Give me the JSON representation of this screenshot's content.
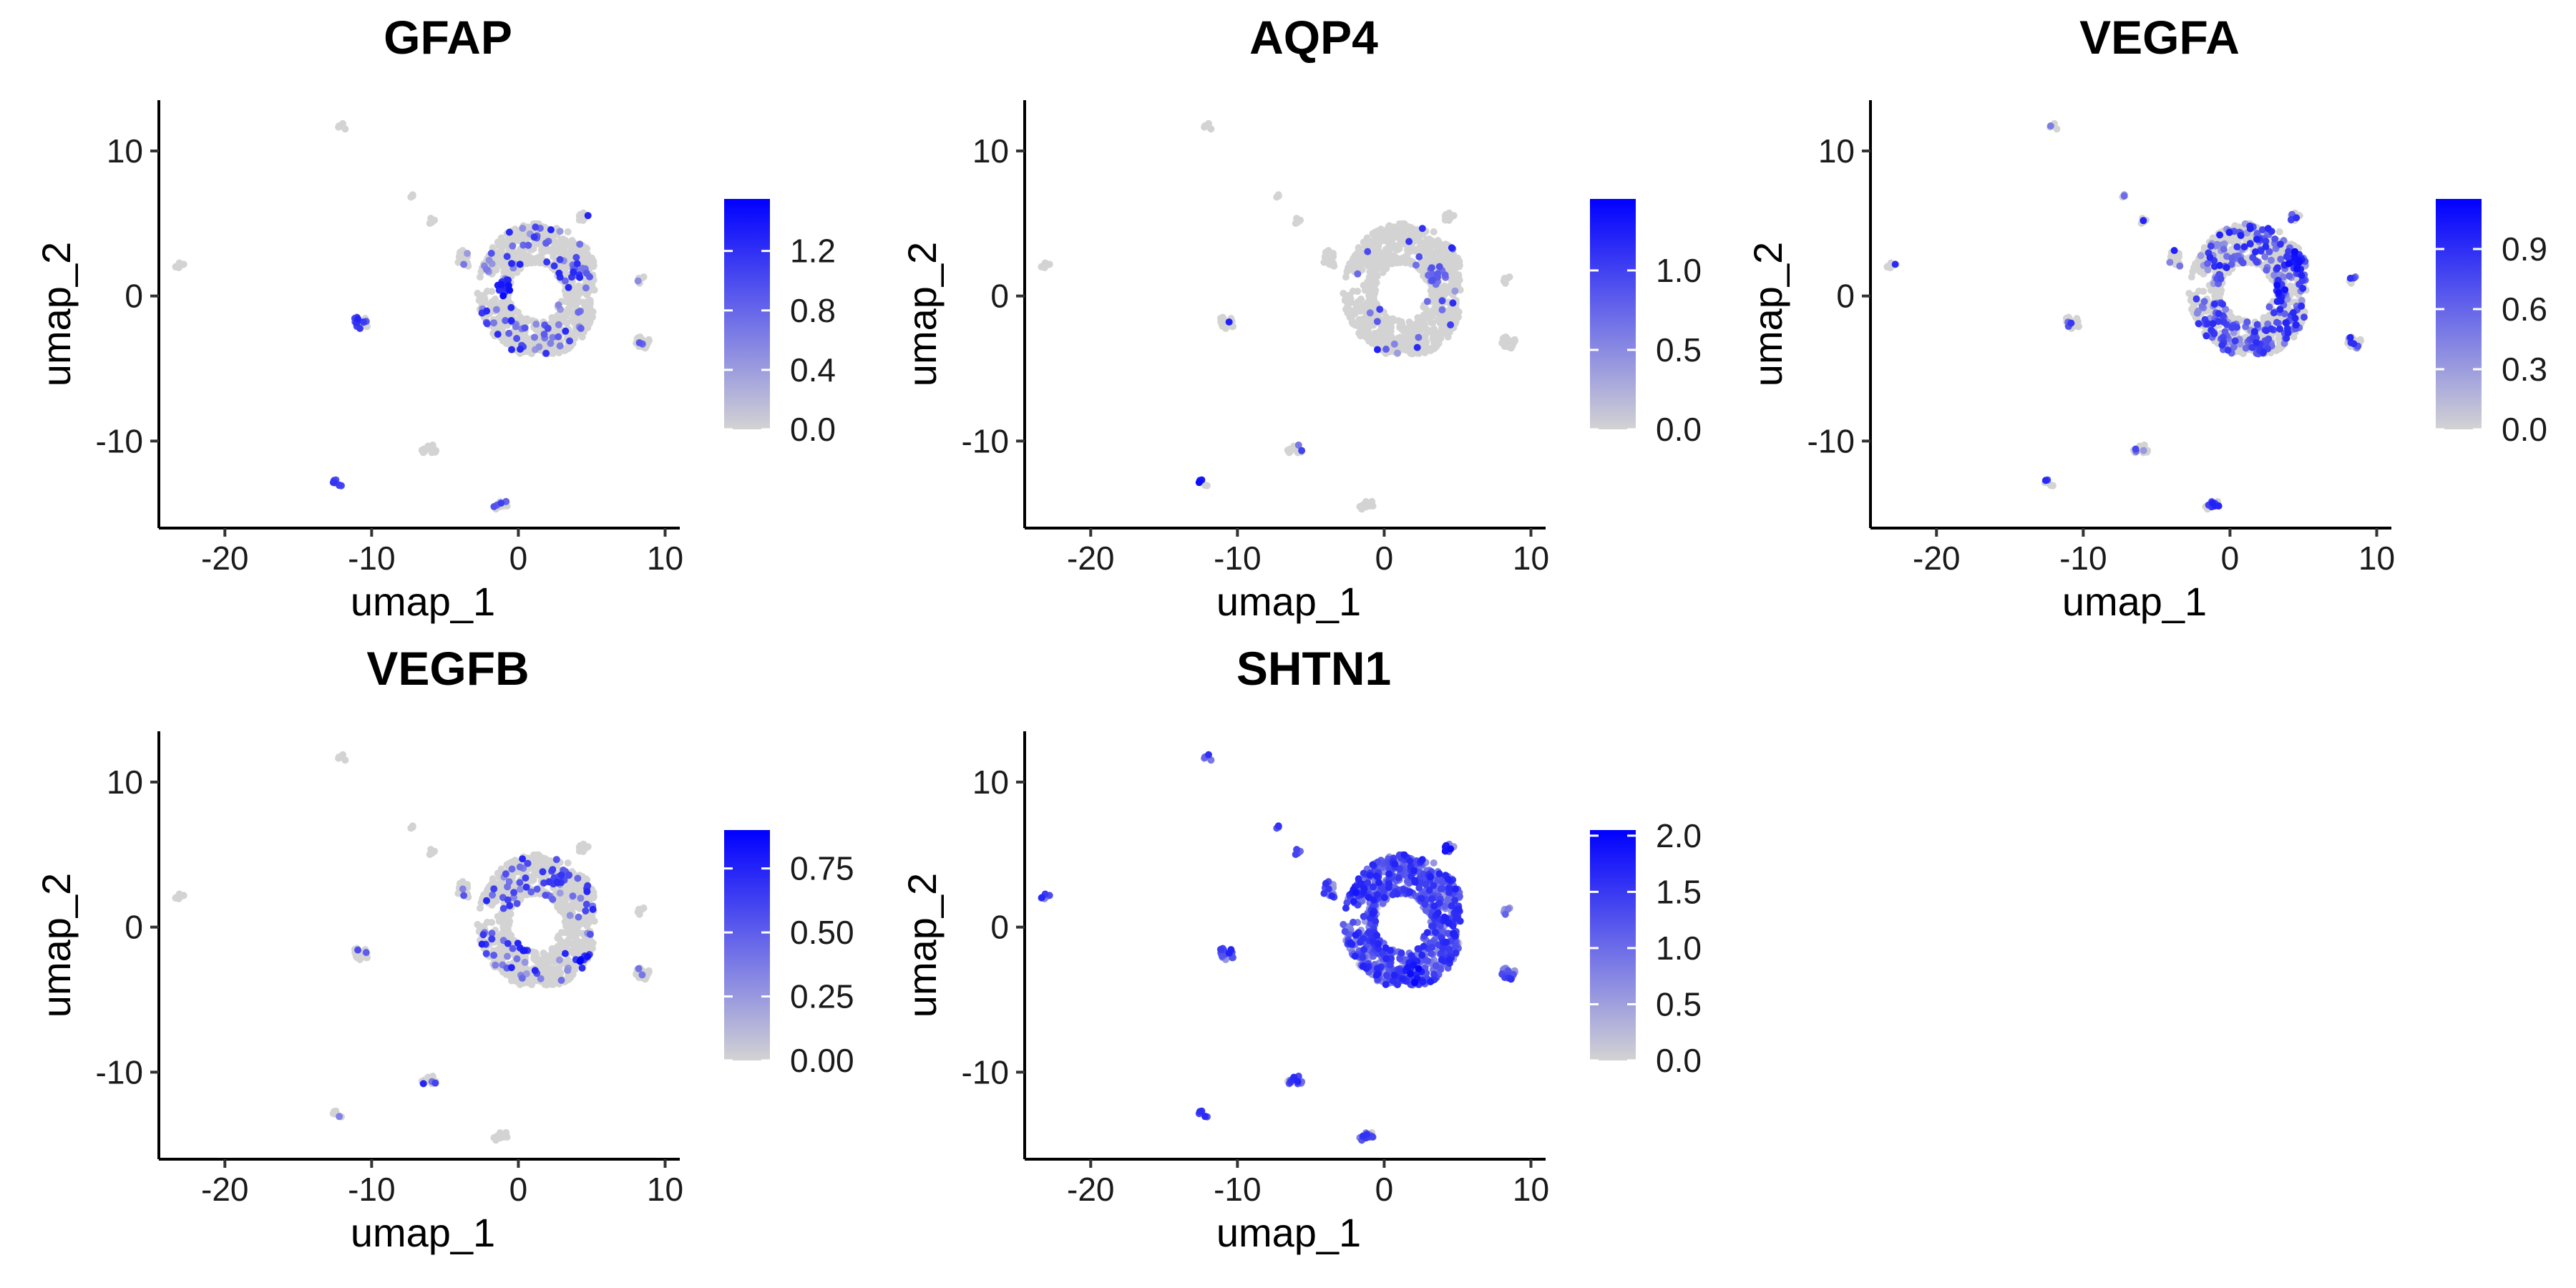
{
  "colors": {
    "low": "#d3d3d3",
    "high": "#0000ff",
    "background": "#ffffff"
  },
  "chart_data": [
    {
      "type": "scatter",
      "title": "GFAP",
      "xlabel": "umap_1",
      "ylabel": "umap_2",
      "xlim": [
        -24.5,
        11
      ],
      "ylim": [
        -16,
        13.5
      ],
      "xticks": [
        -20,
        -10,
        0,
        10
      ],
      "yticks": [
        -10,
        0,
        10
      ],
      "legend": {
        "position": "right",
        "min": 0,
        "max": 1.55,
        "ticks": [
          0.0,
          0.4,
          0.8,
          1.2
        ],
        "tick_labels": [
          "0.0",
          "0.4",
          "0.8",
          "1.2"
        ]
      },
      "expression_fraction": 0.09,
      "hotspots": [
        {
          "x": -1.0,
          "y": 0.5,
          "value": 1.5
        },
        {
          "x": 1.5,
          "y": -0.8,
          "value": 1.0
        },
        {
          "x": 4.0,
          "y": 1.6,
          "value": 0.9
        },
        {
          "x": -11.0,
          "y": -2.0,
          "value": 1.2
        },
        {
          "x": -12.3,
          "y": -12.8,
          "value": 1.2
        }
      ]
    },
    {
      "type": "scatter",
      "title": "AQP4",
      "xlabel": "umap_1",
      "ylabel": "umap_2",
      "xlim": [
        -24.5,
        11
      ],
      "ylim": [
        -16,
        13.5
      ],
      "xticks": [
        -20,
        -10,
        0,
        10
      ],
      "yticks": [
        -10,
        0,
        10
      ],
      "legend": {
        "position": "right",
        "min": 0,
        "max": 1.45,
        "ticks": [
          0.0,
          0.5,
          1.0
        ],
        "tick_labels": [
          "0.0",
          "0.5",
          "1.0"
        ]
      },
      "expression_fraction": 0.03,
      "hotspots": [
        {
          "x": -12.2,
          "y": -12.8,
          "value": 1.4
        },
        {
          "x": 3.6,
          "y": 1.5,
          "value": 0.9
        }
      ]
    },
    {
      "type": "scatter",
      "title": "VEGFA",
      "xlabel": "umap_1",
      "ylabel": "umap_2",
      "xlim": [
        -24.5,
        11
      ],
      "ylim": [
        -16,
        13.5
      ],
      "xticks": [
        -20,
        -10,
        0,
        10
      ],
      "yticks": [
        -10,
        0,
        10
      ],
      "legend": {
        "position": "right",
        "min": 0,
        "max": 1.15,
        "ticks": [
          0.0,
          0.3,
          0.6,
          0.9
        ],
        "tick_labels": [
          "0.0",
          "0.3",
          "0.6",
          "0.9"
        ]
      },
      "expression_fraction": 0.28,
      "hotspots": [
        {
          "x": 3.2,
          "y": 0.2,
          "value": 1.1
        },
        {
          "x": 4.3,
          "y": 2.5,
          "value": 1.1
        },
        {
          "x": -1.3,
          "y": -14.3,
          "value": 1.0
        },
        {
          "x": 2.0,
          "y": -3.3,
          "value": 0.9
        }
      ]
    },
    {
      "type": "scatter",
      "title": "VEGFB",
      "xlabel": "umap_1",
      "ylabel": "umap_2",
      "xlim": [
        -24.5,
        11
      ],
      "ylim": [
        -16,
        13.5
      ],
      "xticks": [
        -20,
        -10,
        0,
        10
      ],
      "yticks": [
        -10,
        0,
        10
      ],
      "legend": {
        "position": "right",
        "min": 0,
        "max": 0.9,
        "ticks": [
          0.0,
          0.25,
          0.5,
          0.75
        ],
        "tick_labels": [
          "0.00",
          "0.25",
          "0.50",
          "0.75"
        ]
      },
      "expression_fraction": 0.1,
      "hotspots": [
        {
          "x": 4.5,
          "y": -2.5,
          "value": 0.9
        },
        {
          "x": 0.5,
          "y": -1.0,
          "value": 0.8
        },
        {
          "x": 2.8,
          "y": 3.5,
          "value": 0.7
        }
      ]
    },
    {
      "type": "scatter",
      "title": "SHTN1",
      "xlabel": "umap_1",
      "ylabel": "umap_2",
      "xlim": [
        -24.5,
        11
      ],
      "ylim": [
        -16,
        13.5
      ],
      "xticks": [
        -20,
        -10,
        0,
        10
      ],
      "yticks": [
        -10,
        0,
        10
      ],
      "legend": {
        "position": "right",
        "min": 0,
        "max": 2.05,
        "ticks": [
          0.0,
          0.5,
          1.0,
          1.5,
          2.0
        ],
        "tick_labels": [
          "0.0",
          "0.5",
          "1.0",
          "1.5",
          "2.0"
        ]
      },
      "expression_fraction": 0.95,
      "hotspots": [
        {
          "x": 2.0,
          "y": -3.2,
          "value": 2.0
        },
        {
          "x": 4.3,
          "y": 5.3,
          "value": 2.0
        },
        {
          "x": -2.0,
          "y": 3.0,
          "value": 1.9
        }
      ]
    }
  ],
  "cell_clusters": [
    {
      "shape": "main-ring",
      "cx": 1.5,
      "cy": 0.5,
      "n": 900
    },
    {
      "shape": "blob",
      "cx": -3.5,
      "cy": 2.6,
      "r": 0.7,
      "n": 14
    },
    {
      "shape": "blob",
      "cx": -7.2,
      "cy": 6.9,
      "r": 0.2,
      "n": 3
    },
    {
      "shape": "blob",
      "cx": -6.0,
      "cy": 5.2,
      "r": 0.3,
      "n": 5
    },
    {
      "shape": "blob",
      "cx": -12.0,
      "cy": 11.7,
      "r": 0.3,
      "n": 5
    },
    {
      "shape": "blob",
      "cx": -23.0,
      "cy": 2.1,
      "r": 0.4,
      "n": 6
    },
    {
      "shape": "blob",
      "cx": -10.8,
      "cy": -1.9,
      "r": 0.6,
      "n": 16
    },
    {
      "shape": "blob",
      "cx": -6.1,
      "cy": -10.6,
      "r": 0.5,
      "n": 14
    },
    {
      "shape": "blob",
      "cx": -12.3,
      "cy": -12.9,
      "r": 0.35,
      "n": 7
    },
    {
      "shape": "blob",
      "cx": -1.2,
      "cy": -14.4,
      "r": 0.5,
      "n": 12
    },
    {
      "shape": "blob",
      "cx": 8.6,
      "cy": -3.1,
      "r": 0.6,
      "n": 18
    },
    {
      "shape": "blob",
      "cx": 8.4,
      "cy": 1.1,
      "r": 0.3,
      "n": 5
    },
    {
      "shape": "blob",
      "cx": 4.4,
      "cy": 5.5,
      "r": 0.4,
      "n": 8
    }
  ]
}
